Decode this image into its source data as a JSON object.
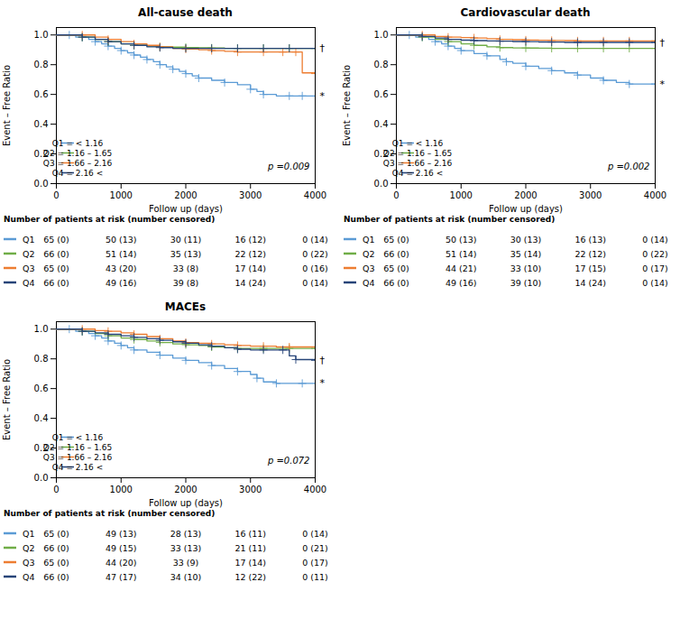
{
  "chart_data": [
    {
      "type": "line",
      "title": "All-cause death",
      "xlabel": "Follow up (days)",
      "ylabel": "Event – Free Ratio",
      "xlim": [
        0,
        4000
      ],
      "ylim": [
        0.0,
        1.05
      ],
      "xticks": [
        0,
        1000,
        2000,
        3000,
        4000
      ],
      "yticks": [
        {
          "value": 0.0,
          "label": "0.0"
        },
        0.2,
        0.4,
        0.6,
        0.8,
        {
          "value": 1.0,
          "label": "1.0"
        }
      ],
      "legend": "lower left",
      "line_style": "step",
      "series": [
        {
          "name": "Q1 = < 1.16",
          "color": "#5B9BD5",
          "marker": "+",
          "x": [
            0,
            100,
            200,
            300,
            400,
            500,
            600,
            700,
            800,
            900,
            1000,
            1100,
            1200,
            1300,
            1400,
            1500,
            1600,
            1700,
            1800,
            1900,
            2000,
            2100,
            2200,
            2400,
            2600,
            2800,
            3000,
            3100,
            3200,
            3400,
            3600,
            3700,
            3800,
            4000
          ],
          "values": [
            1.0,
            1.0,
            1.0,
            0.985,
            0.985,
            0.97,
            0.955,
            0.94,
            0.925,
            0.91,
            0.895,
            0.88,
            0.865,
            0.85,
            0.835,
            0.82,
            0.8,
            0.785,
            0.77,
            0.755,
            0.74,
            0.725,
            0.71,
            0.695,
            0.68,
            0.665,
            0.635,
            0.62,
            0.6,
            0.59,
            0.59,
            0.59,
            0.59,
            0.59
          ]
        },
        {
          "name": "Q2 = 1.16 – 1.65",
          "color": "#70AD47",
          "marker": "+",
          "x": [
            0,
            200,
            400,
            600,
            800,
            1000,
            1200,
            1400,
            1600,
            1800,
            2000,
            2200,
            2400,
            2600,
            2800,
            3000,
            3200,
            3400,
            3600,
            3800,
            4000
          ],
          "values": [
            1.0,
            1.0,
            0.985,
            0.97,
            0.955,
            0.94,
            0.93,
            0.925,
            0.92,
            0.918,
            0.916,
            0.914,
            0.912,
            0.91,
            0.91,
            0.91,
            0.91,
            0.91,
            0.91,
            0.91,
            0.91
          ]
        },
        {
          "name": "Q3 = 1.66 – 2.16",
          "color": "#ED7D31",
          "marker": "+",
          "x": [
            0,
            200,
            400,
            600,
            800,
            1000,
            1200,
            1400,
            1600,
            1800,
            2000,
            2200,
            2400,
            2600,
            2800,
            3000,
            3200,
            3400,
            3500,
            3600,
            3700,
            3800,
            4000
          ],
          "values": [
            1.0,
            1.0,
            1.0,
            0.985,
            0.97,
            0.955,
            0.94,
            0.93,
            0.92,
            0.91,
            0.905,
            0.9,
            0.895,
            0.89,
            0.885,
            0.885,
            0.885,
            0.885,
            0.885,
            0.885,
            0.885,
            0.745,
            0.74
          ]
        },
        {
          "name": "Q4 = 2.16 <",
          "color": "#264478",
          "marker": "+",
          "x": [
            0,
            200,
            400,
            600,
            800,
            1000,
            1200,
            1400,
            1600,
            1800,
            2000,
            2200,
            2400,
            2600,
            2800,
            3000,
            3200,
            3400,
            3600,
            3800,
            4000
          ],
          "values": [
            1.0,
            1.0,
            0.985,
            0.97,
            0.955,
            0.94,
            0.93,
            0.92,
            0.915,
            0.91,
            0.91,
            0.91,
            0.91,
            0.91,
            0.91,
            0.91,
            0.91,
            0.91,
            0.91,
            0.91,
            0.91
          ]
        }
      ],
      "annotations": [
        {
          "text": "†",
          "x": 4000,
          "y": 0.91
        },
        {
          "text": "*",
          "x": 4000,
          "y": 0.59
        },
        {
          "text": "p =0.009"
        }
      ],
      "risk_table": {
        "title": "Number of patients at risk (number censored)",
        "rows": [
          {
            "name": "Q1",
            "color": "#5B9BD5",
            "values": [
              "65 (0)",
              "50 (13)",
              "30 (11)",
              "16 (12)",
              "0 (14)"
            ]
          },
          {
            "name": "Q2",
            "color": "#70AD47",
            "values": [
              "66 (0)",
              "51 (14)",
              "35 (13)",
              "22 (12)",
              "0 (22)"
            ]
          },
          {
            "name": "Q3",
            "color": "#ED7D31",
            "values": [
              "65 (0)",
              "43 (20)",
              "33 (8)",
              "17 (14)",
              "0 (16)"
            ]
          },
          {
            "name": "Q4",
            "color": "#264478",
            "values": [
              "66 (0)",
              "49 (16)",
              "39 (8)",
              "14 (24)",
              "0 (14)"
            ]
          }
        ]
      }
    },
    {
      "type": "line",
      "title": "Cardiovascular death",
      "xlabel": "Follow up (days)",
      "ylabel": "Event – Free Ratio",
      "xlim": [
        0,
        4000
      ],
      "ylim": [
        0.0,
        1.05
      ],
      "xticks": [
        0,
        1000,
        2000,
        3000,
        4000
      ],
      "yticks": [
        {
          "value": 0.0,
          "label": "0.0"
        },
        0.2,
        0.4,
        0.6,
        0.8,
        {
          "value": 1.0,
          "label": "1.0"
        }
      ],
      "legend": "lower left",
      "line_style": "step",
      "series": [
        {
          "name": "Q1 = < 1.16",
          "color": "#5B9BD5",
          "marker": "+",
          "x": [
            0,
            100,
            200,
            300,
            400,
            500,
            600,
            700,
            800,
            900,
            1000,
            1200,
            1400,
            1600,
            1700,
            1800,
            2000,
            2200,
            2400,
            2600,
            2800,
            3000,
            3200,
            3400,
            3600,
            3800,
            4000
          ],
          "values": [
            1.0,
            1.0,
            1.0,
            0.985,
            0.985,
            0.97,
            0.955,
            0.94,
            0.925,
            0.91,
            0.895,
            0.875,
            0.86,
            0.835,
            0.82,
            0.81,
            0.79,
            0.775,
            0.76,
            0.745,
            0.73,
            0.71,
            0.695,
            0.68,
            0.67,
            0.67,
            0.67
          ]
        },
        {
          "name": "Q2 = 1.16 – 1.65",
          "color": "#70AD47",
          "marker": "+",
          "x": [
            0,
            200,
            400,
            600,
            800,
            1000,
            1200,
            1400,
            1600,
            1800,
            2000,
            2200,
            2400,
            2600,
            2800,
            3000,
            3200,
            3400,
            3600,
            3800,
            4000
          ],
          "values": [
            1.0,
            1.0,
            0.985,
            0.97,
            0.955,
            0.94,
            0.93,
            0.92,
            0.915,
            0.913,
            0.912,
            0.911,
            0.91,
            0.91,
            0.91,
            0.91,
            0.91,
            0.91,
            0.91,
            0.91,
            0.91
          ]
        },
        {
          "name": "Q3 = 1.66 – 2.16",
          "color": "#ED7D31",
          "marker": "+",
          "x": [
            0,
            200,
            400,
            600,
            800,
            1000,
            1200,
            1400,
            1600,
            1800,
            2000,
            2200,
            2400,
            2600,
            2800,
            3000,
            3200,
            3400,
            3600,
            3800,
            4000
          ],
          "values": [
            1.0,
            1.0,
            1.0,
            0.99,
            0.985,
            0.982,
            0.98,
            0.975,
            0.97,
            0.968,
            0.966,
            0.964,
            0.963,
            0.962,
            0.96,
            0.96,
            0.96,
            0.96,
            0.96,
            0.96,
            0.96
          ]
        },
        {
          "name": "Q4 = 2.16 <",
          "color": "#264478",
          "marker": "+",
          "x": [
            0,
            200,
            400,
            600,
            800,
            1000,
            1200,
            1400,
            1600,
            1800,
            2000,
            2200,
            2400,
            2600,
            2800,
            3000,
            3200,
            3400,
            3600,
            3800,
            4000
          ],
          "values": [
            1.0,
            1.0,
            0.99,
            0.98,
            0.97,
            0.965,
            0.962,
            0.96,
            0.958,
            0.956,
            0.955,
            0.953,
            0.952,
            0.95,
            0.95,
            0.95,
            0.95,
            0.95,
            0.95,
            0.95,
            0.95
          ]
        }
      ],
      "annotations": [
        {
          "text": "†",
          "x": 4000,
          "y": 0.95
        },
        {
          "text": "*",
          "x": 4000,
          "y": 0.67
        },
        {
          "text": "p =0.002"
        }
      ],
      "risk_table": {
        "title": "Number of patients at risk (number censored)",
        "rows": [
          {
            "name": "Q1",
            "color": "#5B9BD5",
            "values": [
              "65 (0)",
              "50 (13)",
              "30 (13)",
              "16 (13)",
              "0 (14)"
            ]
          },
          {
            "name": "Q2",
            "color": "#70AD47",
            "values": [
              "66 (0)",
              "51 (14)",
              "35 (14)",
              "22 (12)",
              "0 (22)"
            ]
          },
          {
            "name": "Q3",
            "color": "#ED7D31",
            "values": [
              "65 (0)",
              "44 (21)",
              "33 (10)",
              "17 (15)",
              "0 (17)"
            ]
          },
          {
            "name": "Q4",
            "color": "#264478",
            "values": [
              "66 (0)",
              "49 (16)",
              "39 (10)",
              "14 (24)",
              "0 (14)"
            ]
          }
        ]
      }
    },
    {
      "type": "line",
      "title": "MACEs",
      "xlabel": "Follow up (days)",
      "ylabel": "Event – Free Ratio",
      "xlim": [
        0,
        4000
      ],
      "ylim": [
        0.0,
        1.05
      ],
      "xticks": [
        0,
        1000,
        2000,
        3000,
        4000
      ],
      "yticks": [
        {
          "value": 0.0,
          "label": "0.0"
        },
        0.2,
        0.4,
        0.6,
        0.8,
        {
          "value": 1.0,
          "label": "1.0"
        }
      ],
      "legend": "lower left",
      "line_style": "step",
      "series": [
        {
          "name": "Q1 = < 1.16",
          "color": "#5B9BD5",
          "marker": "+",
          "x": [
            0,
            100,
            200,
            300,
            400,
            500,
            600,
            700,
            800,
            900,
            1000,
            1100,
            1200,
            1400,
            1600,
            1800,
            2000,
            2200,
            2400,
            2600,
            2800,
            3000,
            3100,
            3200,
            3400,
            3600,
            3800,
            4000
          ],
          "values": [
            1.0,
            1.0,
            1.0,
            0.985,
            0.985,
            0.97,
            0.955,
            0.94,
            0.92,
            0.905,
            0.89,
            0.875,
            0.86,
            0.845,
            0.825,
            0.805,
            0.79,
            0.775,
            0.755,
            0.735,
            0.715,
            0.695,
            0.67,
            0.645,
            0.635,
            0.635,
            0.635,
            0.635
          ]
        },
        {
          "name": "Q2 = 1.16 – 1.65",
          "color": "#70AD47",
          "marker": "+",
          "x": [
            0,
            200,
            400,
            600,
            800,
            1000,
            1200,
            1400,
            1600,
            1800,
            2000,
            2200,
            2400,
            2600,
            2800,
            3000,
            3200,
            3400,
            3600,
            3800,
            4000
          ],
          "values": [
            1.0,
            1.0,
            0.985,
            0.97,
            0.955,
            0.94,
            0.93,
            0.92,
            0.91,
            0.9,
            0.895,
            0.89,
            0.88,
            0.875,
            0.87,
            0.87,
            0.87,
            0.87,
            0.87,
            0.87,
            0.87
          ]
        },
        {
          "name": "Q3 = 1.66 – 2.16",
          "color": "#ED7D31",
          "marker": "+",
          "x": [
            0,
            200,
            400,
            600,
            800,
            1000,
            1200,
            1400,
            1600,
            1800,
            2000,
            2200,
            2400,
            2600,
            2800,
            3000,
            3200,
            3400,
            3600,
            3800,
            4000
          ],
          "values": [
            1.0,
            1.0,
            1.0,
            0.99,
            0.985,
            0.975,
            0.965,
            0.95,
            0.935,
            0.92,
            0.91,
            0.905,
            0.9,
            0.895,
            0.89,
            0.885,
            0.885,
            0.88,
            0.88,
            0.88,
            0.88
          ]
        },
        {
          "name": "Q4 = 2.16 <",
          "color": "#264478",
          "marker": "+",
          "x": [
            0,
            200,
            400,
            600,
            800,
            1000,
            1200,
            1400,
            1600,
            1800,
            2000,
            2200,
            2400,
            2600,
            2800,
            3000,
            3200,
            3400,
            3500,
            3600,
            3700,
            3800,
            4000
          ],
          "values": [
            1.0,
            1.0,
            0.985,
            0.975,
            0.965,
            0.955,
            0.945,
            0.935,
            0.925,
            0.915,
            0.905,
            0.895,
            0.885,
            0.875,
            0.865,
            0.86,
            0.86,
            0.86,
            0.86,
            0.82,
            0.795,
            0.795,
            0.79
          ]
        }
      ],
      "annotations": [
        {
          "text": "†",
          "x": 4000,
          "y": 0.79
        },
        {
          "text": "*",
          "x": 4000,
          "y": 0.635
        },
        {
          "text": "p =0.072"
        }
      ],
      "risk_table": {
        "title": "Number of patients at risk (number censored)",
        "rows": [
          {
            "name": "Q1",
            "color": "#5B9BD5",
            "values": [
              "65 (0)",
              "49 (13)",
              "28 (13)",
              "16 (11)",
              "0 (14)"
            ]
          },
          {
            "name": "Q2",
            "color": "#70AD47",
            "values": [
              "66 (0)",
              "49 (15)",
              "33 (13)",
              "21 (11)",
              "0 (21)"
            ]
          },
          {
            "name": "Q3",
            "color": "#ED7D31",
            "values": [
              "65 (0)",
              "44 (20)",
              "33 (9)",
              "17 (14)",
              "0 (17)"
            ]
          },
          {
            "name": "Q4",
            "color": "#264478",
            "values": [
              "66 (0)",
              "47 (17)",
              "34 (10)",
              "12 (22)",
              "0 (11)"
            ]
          }
        ]
      }
    }
  ]
}
